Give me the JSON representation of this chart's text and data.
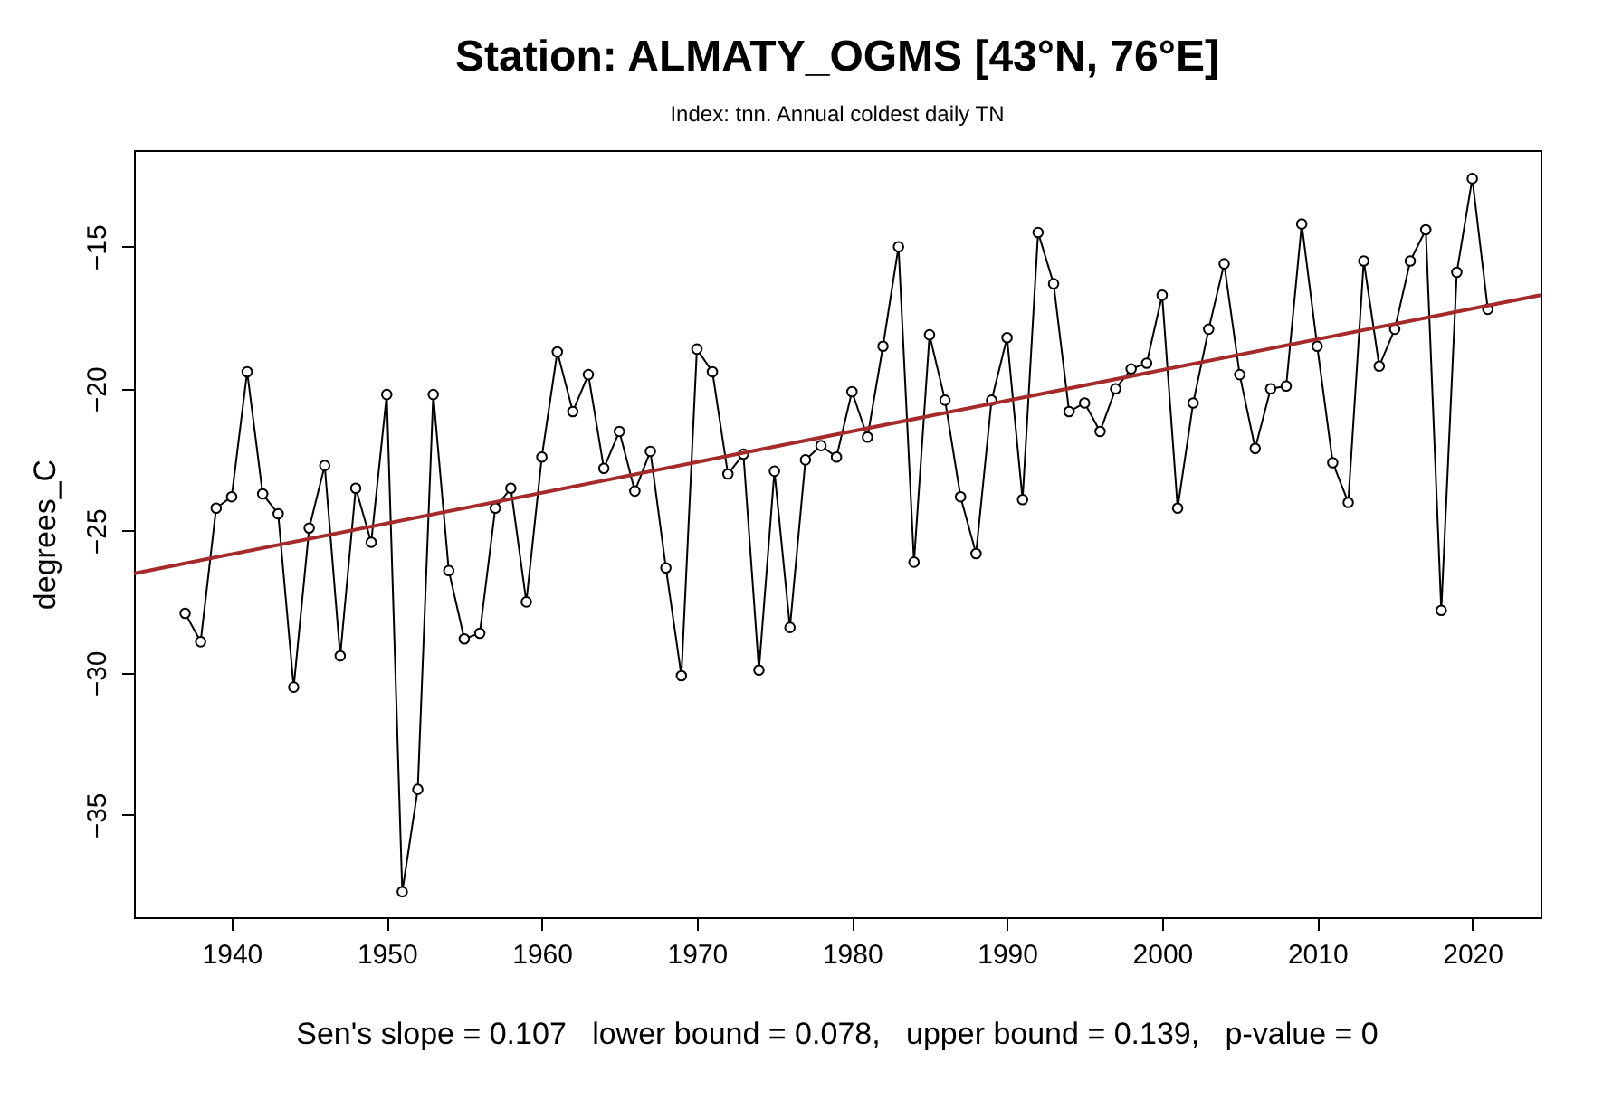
{
  "chart_data": {
    "type": "line",
    "title": "Station: ALMATY_OGMS [43°N, 76°E]",
    "subtitle": "Index: tnn. Annual coldest daily TN",
    "ylabel": "degrees_C",
    "annotations": [
      "Sen's slope = 0.107   lower bound = 0.078,   upper bound = 0.139,   p-value = 0"
    ],
    "xlim": [
      1933.7,
      2024.4
    ],
    "xticks": [
      1940,
      1950,
      1960,
      1970,
      1980,
      1990,
      2000,
      2010,
      2020
    ],
    "ylim": [
      -38.6,
      -11.6
    ],
    "yticks": [
      -35,
      -30,
      -25,
      -20,
      -15
    ],
    "marker": "circle",
    "line_style": "solid",
    "series": [
      {
        "color": "#000000",
        "x": [
          1937,
          1938,
          1939,
          1940,
          1941,
          1942,
          1943,
          1944,
          1945,
          1946,
          1947,
          1948,
          1949,
          1950,
          1951,
          1952,
          1953,
          1954,
          1955,
          1956,
          1957,
          1958,
          1959,
          1960,
          1961,
          1962,
          1963,
          1964,
          1965,
          1966,
          1967,
          1968,
          1969,
          1970,
          1971,
          1972,
          1973,
          1974,
          1975,
          1976,
          1977,
          1978,
          1979,
          1980,
          1981,
          1982,
          1983,
          1984,
          1985,
          1986,
          1987,
          1988,
          1989,
          1990,
          1991,
          1992,
          1993,
          1994,
          1995,
          1996,
          1997,
          1998,
          1999,
          2000,
          2001,
          2002,
          2003,
          2004,
          2005,
          2006,
          2007,
          2008,
          2009,
          2010,
          2011,
          2012,
          2013,
          2014,
          2015,
          2016,
          2017,
          2018,
          2019,
          2020,
          2021
        ],
        "values": [
          -27.9,
          -28.9,
          -24.2,
          -23.8,
          -19.4,
          -23.7,
          -24.4,
          -30.5,
          -24.9,
          -22.7,
          -29.4,
          -23.5,
          -25.4,
          -20.2,
          -37.7,
          -34.1,
          -20.2,
          -26.4,
          -28.8,
          -28.6,
          -24.2,
          -23.5,
          -27.5,
          -22.4,
          -18.7,
          -20.8,
          -19.5,
          -22.8,
          -21.5,
          -23.6,
          -22.2,
          -26.3,
          -30.1,
          -18.6,
          -19.4,
          -23.0,
          -22.3,
          -29.9,
          -22.9,
          -28.4,
          -22.5,
          -22.0,
          -22.4,
          -20.1,
          -21.7,
          -18.5,
          -15.0,
          -26.1,
          -18.1,
          -20.4,
          -23.8,
          -25.8,
          -20.4,
          -18.2,
          -23.9,
          -14.5,
          -16.3,
          -20.8,
          -20.5,
          -21.5,
          -20.0,
          -19.3,
          -19.1,
          -16.7,
          -24.2,
          -20.5,
          -17.9,
          -15.6,
          -19.5,
          -22.1,
          -20.0,
          -19.9,
          -14.2,
          -18.5,
          -22.6,
          -24.0,
          -15.5,
          -19.2,
          -17.9,
          -15.5,
          -14.4,
          -27.8,
          -15.9,
          -12.6,
          -17.2
        ]
      },
      {
        "type": "line",
        "color": "#a52a2a",
        "marker": "none",
        "x": [
          1933.7,
          2024.4
        ],
        "values": [
          -26.5,
          -16.7
        ]
      }
    ]
  }
}
